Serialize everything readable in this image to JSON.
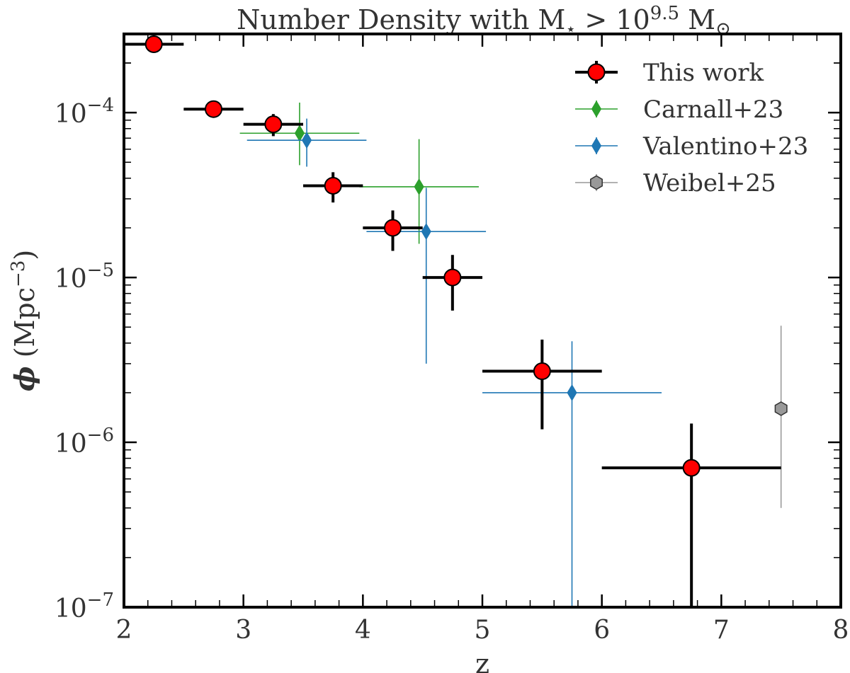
{
  "chart_data": {
    "type": "scatter",
    "title": {
      "main": "Number Density with M",
      "star": "⋆",
      "gt": " > 10",
      "exp": "9.5",
      "unit": " M",
      "sun": "⊙"
    },
    "xlabel": "z",
    "ylabel": {
      "phi": "ϕ",
      "unit": " (Mpc",
      "exp": "−3",
      "close": ")"
    },
    "xlim": [
      2,
      8
    ],
    "ylim": [
      1e-07,
      0.0003
    ],
    "yscale": "log",
    "xticks": [
      2,
      3,
      4,
      5,
      6,
      7,
      8
    ],
    "xtick_labels": [
      "2",
      "3",
      "4",
      "5",
      "6",
      "7",
      "8"
    ],
    "yticks": [
      {
        "value": 0.0001,
        "base": "10",
        "exp": "−4"
      },
      {
        "value": 1e-05,
        "base": "10",
        "exp": "−5"
      },
      {
        "value": 1e-06,
        "base": "10",
        "exp": "−6"
      },
      {
        "value": 1e-07,
        "base": "10",
        "exp": "−7"
      }
    ],
    "legend_position": "top-right",
    "series": [
      {
        "name": "This work",
        "color": "#ff0000",
        "edge": "#000000",
        "errcolor": "#000000",
        "marker": "circle",
        "points": [
          {
            "x": 2.25,
            "xlo": 2.0,
            "xhi": 2.5,
            "y": 0.00026,
            "ylo": 0.000245,
            "yhi": 0.000275
          },
          {
            "x": 2.75,
            "xlo": 2.5,
            "xhi": 3.0,
            "y": 0.000105,
            "ylo": 9.3e-05,
            "yhi": 0.000117
          },
          {
            "x": 3.25,
            "xlo": 3.0,
            "xhi": 3.5,
            "y": 8.5e-05,
            "ylo": 7.2e-05,
            "yhi": 9.8e-05
          },
          {
            "x": 3.75,
            "xlo": 3.5,
            "xhi": 4.0,
            "y": 3.6e-05,
            "ylo": 2.85e-05,
            "yhi": 4.35e-05
          },
          {
            "x": 4.25,
            "xlo": 4.0,
            "xhi": 4.5,
            "y": 2e-05,
            "ylo": 1.45e-05,
            "yhi": 2.55e-05
          },
          {
            "x": 4.75,
            "xlo": 4.5,
            "xhi": 5.0,
            "y": 1e-05,
            "ylo": 6.3e-06,
            "yhi": 1.37e-05
          },
          {
            "x": 5.5,
            "xlo": 5.0,
            "xhi": 6.0,
            "y": 2.7e-06,
            "ylo": 1.2e-06,
            "yhi": 4.2e-06
          },
          {
            "x": 6.75,
            "xlo": 6.0,
            "xhi": 7.5,
            "y": 7e-07,
            "ylo": 1e-07,
            "yhi": 1.3e-06
          }
        ]
      },
      {
        "name": "Carnall+23",
        "color": "#2ca02c",
        "edge": "#2ca02c",
        "errcolor": "#2ca02c",
        "marker": "diamond",
        "points": [
          {
            "x": 3.47,
            "xlo": 2.97,
            "xhi": 3.97,
            "y": 7.5e-05,
            "ylo": 4.8e-05,
            "yhi": 0.000115
          },
          {
            "x": 4.47,
            "xlo": 3.97,
            "xhi": 4.97,
            "y": 3.55e-05,
            "ylo": 1.6e-05,
            "yhi": 6.9e-05
          }
        ]
      },
      {
        "name": "Valentino+23",
        "color": "#1f77b4",
        "edge": "#1f77b4",
        "errcolor": "#1f77b4",
        "marker": "diamond",
        "points": [
          {
            "x": 3.53,
            "xlo": 3.03,
            "xhi": 4.03,
            "y": 6.8e-05,
            "ylo": 4.7e-05,
            "yhi": 9.2e-05
          },
          {
            "x": 4.53,
            "xlo": 4.03,
            "xhi": 5.03,
            "y": 1.9e-05,
            "ylo": 3e-06,
            "yhi": 3.5e-05
          },
          {
            "x": 5.75,
            "xlo": 5.0,
            "xhi": 6.5,
            "y": 2e-06,
            "ylo": 1e-07,
            "yhi": 4.1e-06
          }
        ]
      },
      {
        "name": "Weibel+25",
        "color": "#999999",
        "edge": "#333333",
        "errcolor": "#999999",
        "marker": "hexagon",
        "points": [
          {
            "x": 7.5,
            "xlo": 7.5,
            "xhi": 7.5,
            "y": 1.6e-06,
            "ylo": 4e-07,
            "yhi": 5.1e-06
          }
        ]
      }
    ]
  }
}
